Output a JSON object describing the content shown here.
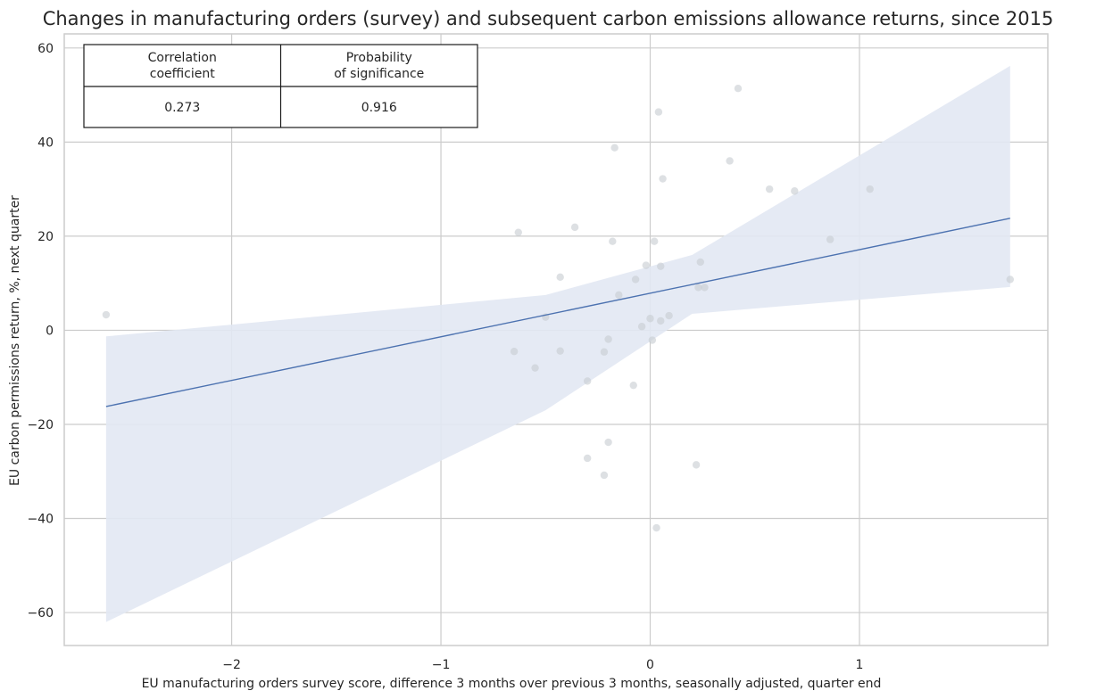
{
  "chart_data": {
    "type": "scatter",
    "title": "Changes in manufacturing orders (survey) and subsequent carbon emissions allowance returns, since 2015",
    "xlabel": "EU manufacturing orders survey score, difference 3 months over previous 3 months, seasonally adjusted, quarter end",
    "ylabel": "EU carbon permissions return, %, next quarter",
    "xlim": [
      -2.8,
      1.9
    ],
    "ylim": [
      -67,
      63
    ],
    "x_ticks": [
      -2,
      -1,
      0,
      1
    ],
    "x_tick_labels": [
      "−2",
      "−1",
      "0",
      "1"
    ],
    "y_ticks": [
      -60,
      -40,
      -20,
      0,
      20,
      40,
      60
    ],
    "y_tick_labels": [
      "−60",
      "−40",
      "−20",
      "0",
      "20",
      "40",
      "60"
    ],
    "grid": true,
    "points": [
      {
        "x": -2.6,
        "y": 3.3
      },
      {
        "x": -0.63,
        "y": 20.8
      },
      {
        "x": -0.65,
        "y": -4.5
      },
      {
        "x": -0.55,
        "y": -8.0
      },
      {
        "x": -0.5,
        "y": 2.8
      },
      {
        "x": -0.43,
        "y": 11.3
      },
      {
        "x": -0.43,
        "y": -4.4
      },
      {
        "x": -0.36,
        "y": 21.9
      },
      {
        "x": -0.3,
        "y": -10.8
      },
      {
        "x": -0.3,
        "y": -27.2
      },
      {
        "x": -0.17,
        "y": 38.8
      },
      {
        "x": -0.18,
        "y": 18.9
      },
      {
        "x": -0.15,
        "y": 7.5
      },
      {
        "x": -0.2,
        "y": -1.9
      },
      {
        "x": -0.22,
        "y": -4.6
      },
      {
        "x": -0.2,
        "y": -23.8
      },
      {
        "x": -0.22,
        "y": -30.8
      },
      {
        "x": -0.08,
        "y": -11.7
      },
      {
        "x": -0.07,
        "y": 10.8
      },
      {
        "x": -0.04,
        "y": 0.8
      },
      {
        "x": -0.02,
        "y": 13.8
      },
      {
        "x": 0.0,
        "y": 2.5
      },
      {
        "x": 0.01,
        "y": -2.1
      },
      {
        "x": 0.02,
        "y": 18.9
      },
      {
        "x": 0.03,
        "y": -42.0
      },
      {
        "x": 0.04,
        "y": 46.4
      },
      {
        "x": 0.05,
        "y": 13.6
      },
      {
        "x": 0.05,
        "y": 2.0
      },
      {
        "x": 0.06,
        "y": 32.2
      },
      {
        "x": 0.09,
        "y": 3.1
      },
      {
        "x": 0.22,
        "y": -28.6
      },
      {
        "x": 0.23,
        "y": 9.1
      },
      {
        "x": 0.24,
        "y": 14.5
      },
      {
        "x": 0.26,
        "y": 9.1
      },
      {
        "x": 0.38,
        "y": 36.0
      },
      {
        "x": 0.42,
        "y": 51.4
      },
      {
        "x": 0.57,
        "y": 30.0
      },
      {
        "x": 0.69,
        "y": 29.6
      },
      {
        "x": 0.86,
        "y": 19.3
      },
      {
        "x": 1.05,
        "y": 30.0
      },
      {
        "x": 1.72,
        "y": 10.8
      }
    ],
    "regression": {
      "x": [
        -2.6,
        1.72
      ],
      "y": [
        -16.2,
        23.8
      ]
    },
    "confidence_band": {
      "x": [
        -2.6,
        -0.5,
        0.2,
        1.72
      ],
      "upper": [
        -1.3,
        7.5,
        16.0,
        56.2
      ],
      "lower": [
        -62.0,
        -17.0,
        3.5,
        9.2
      ]
    },
    "colors": {
      "points": "#c7cbd0",
      "line": "#4c72b0",
      "band": "#e2e8f3",
      "grid": "#cccccc",
      "axes": "#cccccc"
    }
  },
  "stats_table": {
    "headers": [
      "Correlation\ncoefficient",
      "Probability\nof significance"
    ],
    "values": [
      "0.273",
      "0.916"
    ]
  }
}
